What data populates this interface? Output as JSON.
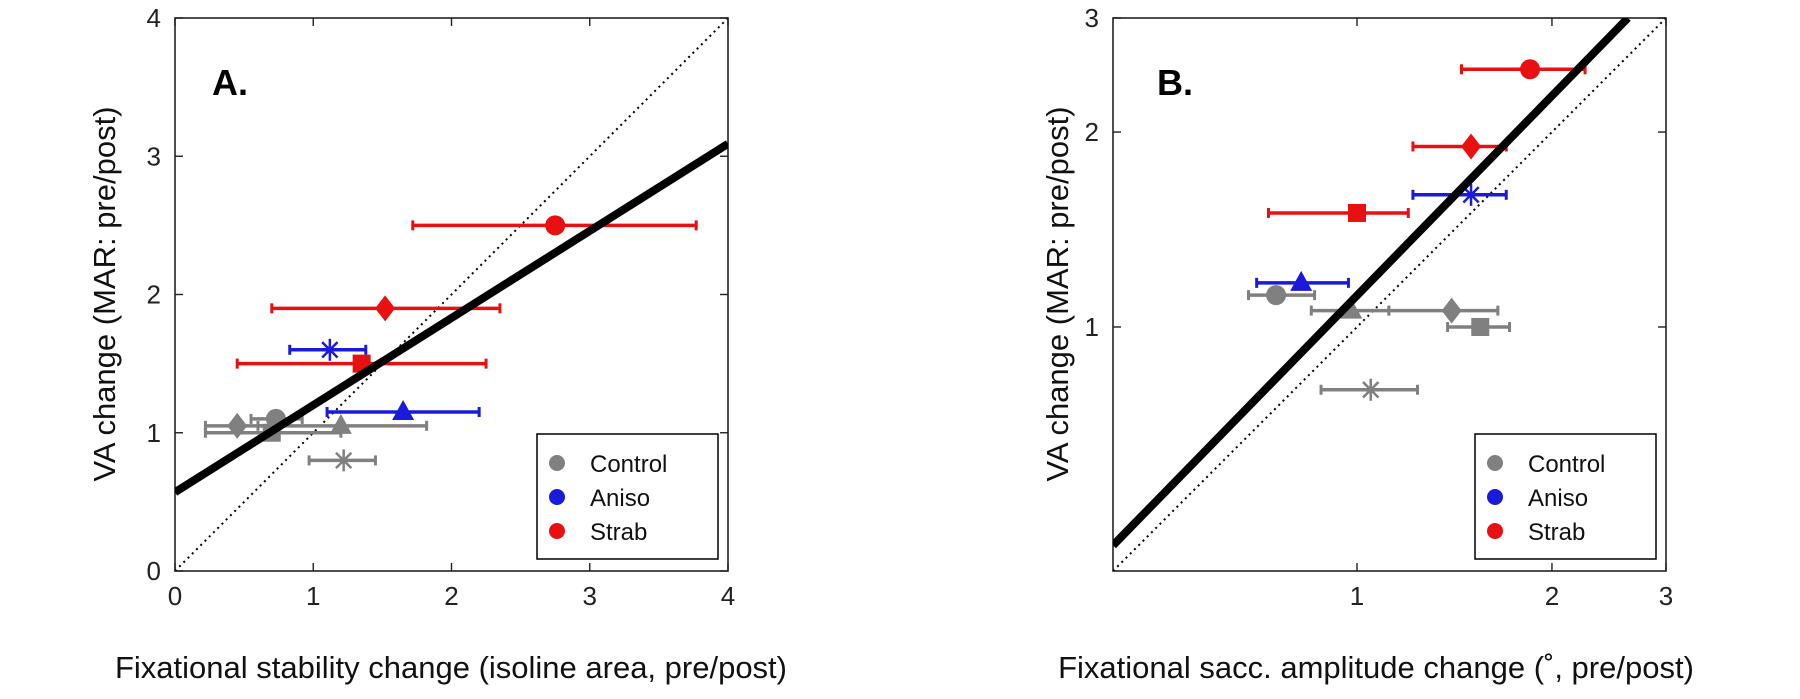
{
  "colors": {
    "Control": "#808080",
    "Aniso": "#1a1adb",
    "Strab": "#e81010",
    "fit": "#000000",
    "identity": "#000000"
  },
  "chart_data": [
    {
      "type": "scatter",
      "panel_label": "A.",
      "xlabel": "Fixational stability change (isoline area, pre/post)",
      "ylabel": "VA change (MAR: pre/post)",
      "xscale": "linear",
      "yscale": "linear",
      "xlim": [
        0,
        4
      ],
      "ylim": [
        0,
        4
      ],
      "xticks": [
        0,
        1,
        2,
        3,
        4
      ],
      "yticks": [
        0,
        1,
        2,
        3,
        4
      ],
      "xtick_labels": [
        "0",
        "1",
        "2",
        "3",
        "4"
      ],
      "ytick_labels": [
        "0",
        "1",
        "2",
        "3",
        "4"
      ],
      "legend": {
        "placement": "bottom-right",
        "entries": [
          "Control",
          "Aniso",
          "Strab"
        ]
      },
      "identity_line": true,
      "fit_line": {
        "from": [
          0,
          0.57
        ],
        "to": [
          4,
          3.09
        ]
      },
      "points": [
        {
          "group": "Control",
          "marker": "diamond",
          "x": 0.45,
          "y": 1.05,
          "xerr": [
            0.22,
            0.68
          ]
        },
        {
          "group": "Control",
          "marker": "circle",
          "x": 0.73,
          "y": 1.1,
          "xerr": [
            0.55,
            0.92
          ]
        },
        {
          "group": "Control",
          "marker": "square",
          "x": 0.7,
          "y": 1.0,
          "xerr": [
            0.22,
            1.2
          ]
        },
        {
          "group": "Control",
          "marker": "triangle",
          "x": 1.2,
          "y": 1.05,
          "xerr": [
            0.6,
            1.82
          ]
        },
        {
          "group": "Control",
          "marker": "asterisk",
          "x": 1.22,
          "y": 0.8,
          "xerr": [
            0.97,
            1.45
          ]
        },
        {
          "group": "Aniso",
          "marker": "triangle",
          "x": 1.65,
          "y": 1.15,
          "xerr": [
            1.1,
            2.2
          ]
        },
        {
          "group": "Aniso",
          "marker": "asterisk",
          "x": 1.12,
          "y": 1.6,
          "xerr": [
            0.83,
            1.38
          ]
        },
        {
          "group": "Strab",
          "marker": "circle",
          "x": 2.75,
          "y": 2.5,
          "xerr": [
            1.72,
            3.77
          ]
        },
        {
          "group": "Strab",
          "marker": "diamond",
          "x": 1.52,
          "y": 1.9,
          "xerr": [
            0.7,
            2.35
          ]
        },
        {
          "group": "Strab",
          "marker": "square",
          "x": 1.35,
          "y": 1.5,
          "xerr": [
            0.45,
            2.25
          ]
        }
      ]
    },
    {
      "type": "scatter",
      "panel_label": "B.",
      "xlabel": "Fixational sacc. amplitude change (˚, pre/post)",
      "ylabel": "VA change (MAR: pre/post)",
      "xscale": "log",
      "yscale": "log",
      "xlim": [
        0.42,
        3
      ],
      "ylim": [
        0.42,
        3
      ],
      "xticks": [
        1,
        2,
        3
      ],
      "yticks": [
        1,
        2,
        3
      ],
      "xtick_labels": [
        "1",
        "2",
        "3"
      ],
      "ytick_labels": [
        "1",
        "2",
        "3"
      ],
      "legend": {
        "placement": "bottom-right",
        "entries": [
          "Control",
          "Aniso",
          "Strab"
        ]
      },
      "identity_line": true,
      "fit_line": {
        "from": [
          0.42,
          0.46
        ],
        "to": [
          2.62,
          3.0
        ]
      },
      "points": [
        {
          "group": "Control",
          "marker": "circle",
          "x": 0.75,
          "y": 1.12,
          "xerr": [
            0.68,
            0.86
          ]
        },
        {
          "group": "Control",
          "marker": "triangle",
          "x": 0.98,
          "y": 1.06,
          "xerr": [
            0.85,
            1.12
          ]
        },
        {
          "group": "Control",
          "marker": "diamond",
          "x": 1.4,
          "y": 1.06,
          "xerr": [
            1.12,
            1.65
          ]
        },
        {
          "group": "Control",
          "marker": "square",
          "x": 1.55,
          "y": 1.0,
          "xerr": [
            1.38,
            1.72
          ]
        },
        {
          "group": "Control",
          "marker": "asterisk",
          "x": 1.05,
          "y": 0.8,
          "xerr": [
            0.88,
            1.24
          ]
        },
        {
          "group": "Aniso",
          "marker": "triangle",
          "x": 0.82,
          "y": 1.17,
          "xerr": [
            0.7,
            0.97
          ]
        },
        {
          "group": "Aniso",
          "marker": "asterisk",
          "x": 1.5,
          "y": 1.6,
          "xerr": [
            1.22,
            1.7
          ]
        },
        {
          "group": "Strab",
          "marker": "circle",
          "x": 1.85,
          "y": 2.5,
          "xerr": [
            1.45,
            2.25
          ]
        },
        {
          "group": "Strab",
          "marker": "diamond",
          "x": 1.5,
          "y": 1.9,
          "xerr": [
            1.22,
            1.7
          ]
        },
        {
          "group": "Strab",
          "marker": "square",
          "x": 1.0,
          "y": 1.5,
          "xerr": [
            0.73,
            1.2
          ]
        }
      ]
    }
  ]
}
